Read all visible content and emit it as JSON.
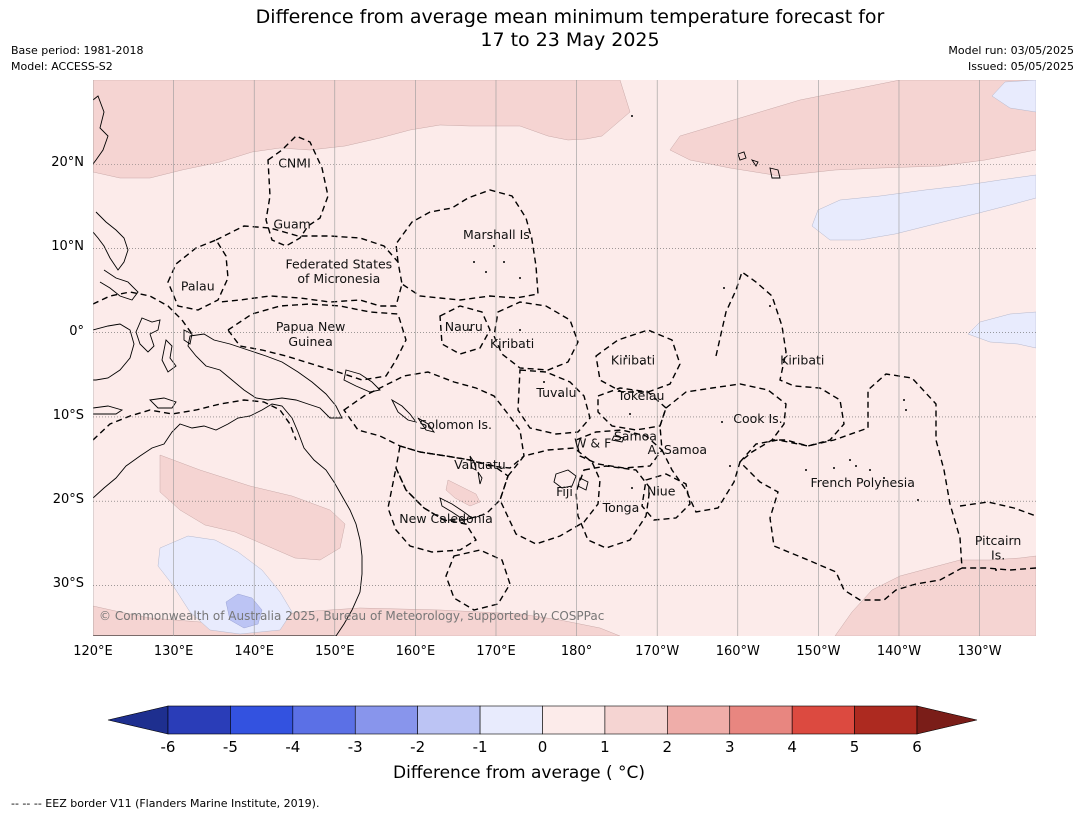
{
  "title": {
    "line1": "Difference from average mean minimum temperature forecast for",
    "line2": "17 to 23 May 2025"
  },
  "meta_left": {
    "base_period": "Base period: 1981-2018",
    "model": "Model: ACCESS-S2"
  },
  "meta_right": {
    "model_run": "Model run: 03/05/2025",
    "issued": "Issued: 05/05/2025"
  },
  "map": {
    "lon_range": [
      120,
      237
    ],
    "lat_range": [
      -36,
      30
    ],
    "lat_ticks": [
      {
        "value": 20,
        "label": "20°N"
      },
      {
        "value": 10,
        "label": "10°N"
      },
      {
        "value": 0,
        "label": "0°"
      },
      {
        "value": -10,
        "label": "10°S"
      },
      {
        "value": -20,
        "label": "20°S"
      },
      {
        "value": -30,
        "label": "30°S"
      }
    ],
    "lon_ticks": [
      {
        "value": 120,
        "label": "120°E"
      },
      {
        "value": 130,
        "label": "130°E"
      },
      {
        "value": 140,
        "label": "140°E"
      },
      {
        "value": 150,
        "label": "150°E"
      },
      {
        "value": 160,
        "label": "160°E"
      },
      {
        "value": 170,
        "label": "170°E"
      },
      {
        "value": 180,
        "label": "180°"
      },
      {
        "value": 190,
        "label": "170°W"
      },
      {
        "value": 200,
        "label": "160°W"
      },
      {
        "value": 210,
        "label": "150°W"
      },
      {
        "value": 220,
        "label": "140°W"
      },
      {
        "value": 230,
        "label": "130°W"
      }
    ],
    "place_labels": [
      {
        "name": "CNMI",
        "lon": 145.0,
        "lat": 19.6
      },
      {
        "name": "Guam",
        "lon": 144.7,
        "lat": 12.4
      },
      {
        "name": "Marshall Is.",
        "lon": 170.3,
        "lat": 11.1
      },
      {
        "name": "Federated States",
        "lon": 150.5,
        "lat": 7.6
      },
      {
        "name": "of Micronesia",
        "lon": 150.5,
        "lat": 5.9
      },
      {
        "name": "Palau",
        "lon": 133.0,
        "lat": 5.0
      },
      {
        "name": "Papua New",
        "lon": 147.0,
        "lat": 0.2
      },
      {
        "name": "Guinea",
        "lon": 147.0,
        "lat": -1.6
      },
      {
        "name": "Nauru",
        "lon": 166.0,
        "lat": 0.2
      },
      {
        "name": "Kiribati",
        "lon": 172.0,
        "lat": -1.8
      },
      {
        "name": "Kiribati",
        "lon": 187.0,
        "lat": -3.8
      },
      {
        "name": "Kiribati",
        "lon": 208.0,
        "lat": -3.8
      },
      {
        "name": "Tuvalu",
        "lon": 177.5,
        "lat": -7.6
      },
      {
        "name": "Tokelau",
        "lon": 188.0,
        "lat": -8.0
      },
      {
        "name": "Cook Is.",
        "lon": 202.5,
        "lat": -10.7
      },
      {
        "name": "Solomon Is.",
        "lon": 165.0,
        "lat": -11.4
      },
      {
        "name": "Samoa",
        "lon": 187.3,
        "lat": -12.8
      },
      {
        "name": "W & F",
        "lon": 182.0,
        "lat": -13.6
      },
      {
        "name": "A. Samoa",
        "lon": 192.5,
        "lat": -14.4
      },
      {
        "name": "Vanuatu",
        "lon": 168.0,
        "lat": -16.2
      },
      {
        "name": "Fiji",
        "lon": 178.5,
        "lat": -19.4
      },
      {
        "name": "Niue",
        "lon": 190.5,
        "lat": -19.3
      },
      {
        "name": "French Polynesia",
        "lon": 215.5,
        "lat": -18.3
      },
      {
        "name": "Tonga",
        "lon": 185.5,
        "lat": -21.3
      },
      {
        "name": "New Caledonia",
        "lon": 163.8,
        "lat": -22.6
      },
      {
        "name": "Pitcairn",
        "lon": 232.3,
        "lat": -25.2
      },
      {
        "name": "Is.",
        "lon": 232.3,
        "lat": -26.9
      }
    ],
    "copyright": "© Commonwealth of Australia 2025, Bureau of Meteorology, supported by COSPPac"
  },
  "colorbar": {
    "ticks": [
      "-6",
      "-5",
      "-4",
      "-3",
      "-2",
      "-1",
      "0",
      "1",
      "2",
      "3",
      "4",
      "5",
      "6"
    ],
    "colors": [
      "#1e2f8f",
      "#2a3db8",
      "#3352e0",
      "#5b70e6",
      "#8895ec",
      "#bcc4f4",
      "#e8ebfd",
      "#fcebea",
      "#f5d4d2",
      "#efada9",
      "#e88680",
      "#dc4a40",
      "#ad2a20",
      "#7a1d18"
    ],
    "label": "Difference from average ( °C)"
  },
  "footnote": "--  --  -- EEZ border V11 (Flanders Marine Institute, 2019)."
}
